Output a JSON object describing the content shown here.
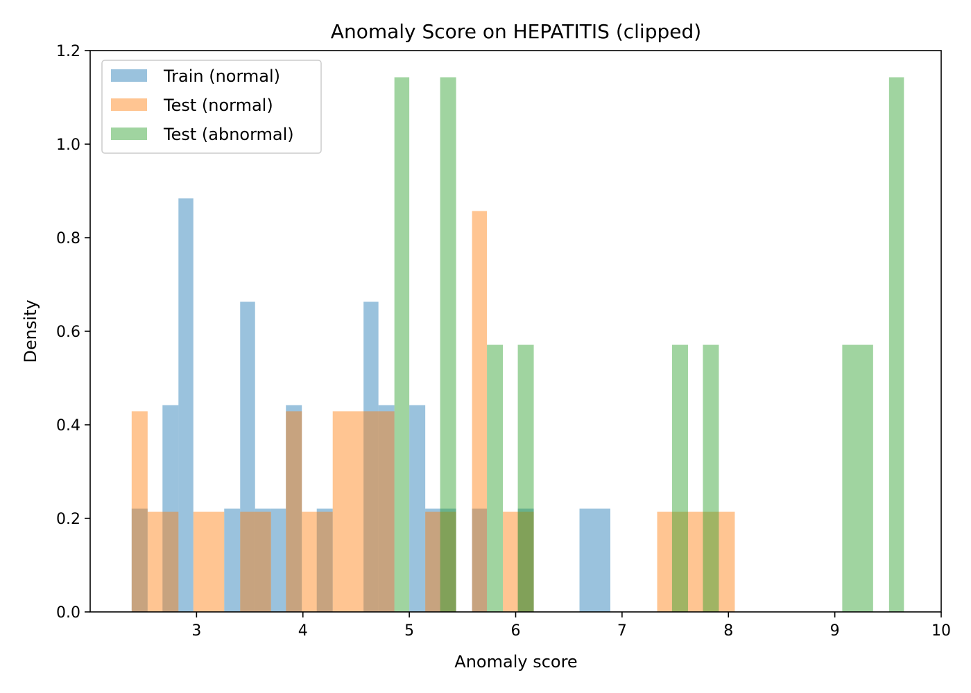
{
  "chart_data": {
    "type": "bar",
    "title": "Anomaly Score on HEPATITIS (clipped)",
    "xlabel": "Anomaly score",
    "ylabel": "Density",
    "xlim": [
      2.0,
      10.0
    ],
    "ylim": [
      0.0,
      1.2
    ],
    "xticks": [
      "3",
      "4",
      "5",
      "6",
      "7",
      "8",
      "9",
      "10"
    ],
    "yticks": [
      "0.0",
      "0.2",
      "0.4",
      "0.6",
      "0.8",
      "1.0",
      "1.2"
    ],
    "bin_width": 0.146,
    "legend_position": "upper-left",
    "grid": false,
    "series": [
      {
        "name": "Train (normal)",
        "color": "#1f77b4",
        "bins": [
          {
            "x0": 2.39,
            "x1": 2.54,
            "y": 0.221
          },
          {
            "x0": 2.68,
            "x1": 2.83,
            "y": 0.442
          },
          {
            "x0": 2.83,
            "x1": 2.97,
            "y": 0.884
          },
          {
            "x0": 3.26,
            "x1": 3.41,
            "y": 0.221
          },
          {
            "x0": 3.41,
            "x1": 3.55,
            "y": 0.663
          },
          {
            "x0": 3.55,
            "x1": 3.7,
            "y": 0.221
          },
          {
            "x0": 3.7,
            "x1": 3.84,
            "y": 0.221
          },
          {
            "x0": 3.84,
            "x1": 3.99,
            "y": 0.442
          },
          {
            "x0": 4.13,
            "x1": 4.28,
            "y": 0.221
          },
          {
            "x0": 4.57,
            "x1": 4.71,
            "y": 0.663
          },
          {
            "x0": 4.71,
            "x1": 4.86,
            "y": 0.442
          },
          {
            "x0": 5.0,
            "x1": 5.15,
            "y": 0.442
          },
          {
            "x0": 5.15,
            "x1": 5.44,
            "y": 0.221
          },
          {
            "x0": 5.59,
            "x1": 5.73,
            "y": 0.221
          },
          {
            "x0": 6.02,
            "x1": 6.17,
            "y": 0.221
          },
          {
            "x0": 6.6,
            "x1": 6.89,
            "y": 0.221
          }
        ]
      },
      {
        "name": "Test (normal)",
        "color": "#ff7f0e",
        "bins": [
          {
            "x0": 2.39,
            "x1": 2.54,
            "y": 0.429
          },
          {
            "x0": 2.54,
            "x1": 2.83,
            "y": 0.214
          },
          {
            "x0": 2.97,
            "x1": 3.26,
            "y": 0.214
          },
          {
            "x0": 3.41,
            "x1": 3.7,
            "y": 0.214
          },
          {
            "x0": 3.84,
            "x1": 3.99,
            "y": 0.429
          },
          {
            "x0": 3.99,
            "x1": 4.28,
            "y": 0.214
          },
          {
            "x0": 4.28,
            "x1": 4.86,
            "y": 0.429
          },
          {
            "x0": 5.15,
            "x1": 5.44,
            "y": 0.214
          },
          {
            "x0": 5.59,
            "x1": 5.73,
            "y": 0.857
          },
          {
            "x0": 5.88,
            "x1": 6.17,
            "y": 0.214
          },
          {
            "x0": 7.33,
            "x1": 8.06,
            "y": 0.214
          }
        ]
      },
      {
        "name": "Test (abnormal)",
        "color": "#2ca02c",
        "bins": [
          {
            "x0": 4.86,
            "x1": 5.0,
            "y": 1.143
          },
          {
            "x0": 5.29,
            "x1": 5.44,
            "y": 1.143
          },
          {
            "x0": 5.73,
            "x1": 5.88,
            "y": 0.571
          },
          {
            "x0": 6.02,
            "x1": 6.17,
            "y": 0.571
          },
          {
            "x0": 7.47,
            "x1": 7.62,
            "y": 0.571
          },
          {
            "x0": 7.76,
            "x1": 7.91,
            "y": 0.571
          },
          {
            "x0": 9.07,
            "x1": 9.36,
            "y": 0.571
          },
          {
            "x0": 9.51,
            "x1": 9.65,
            "y": 1.143
          }
        ]
      }
    ]
  }
}
